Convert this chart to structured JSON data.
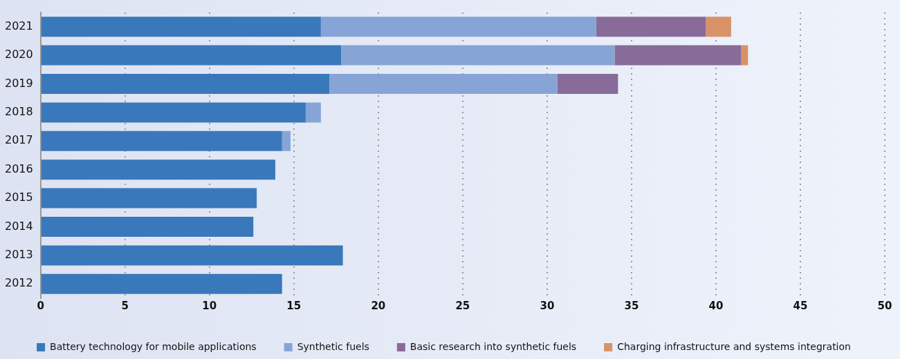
{
  "chart_data": {
    "type": "bar",
    "orientation": "horizontal",
    "stacked": true,
    "categories": [
      "2021",
      "2020",
      "2019",
      "2018",
      "2017",
      "2016",
      "2015",
      "2014",
      "2013",
      "2012"
    ],
    "series": [
      {
        "name": "Battery technology for mobile applications",
        "color": "#3a78bc",
        "values": [
          16.6,
          17.8,
          17.1,
          15.7,
          14.3,
          13.9,
          12.8,
          12.6,
          17.9,
          14.3
        ]
      },
      {
        "name": "Synthetic fuels",
        "color": "#86a5d6",
        "values": [
          16.3,
          16.2,
          13.5,
          0.9,
          0.5,
          null,
          null,
          null,
          null,
          null
        ]
      },
      {
        "name": "Basic research into synthetic fuels",
        "color": "#886b99",
        "values": [
          6.5,
          7.5,
          3.6,
          null,
          null,
          null,
          null,
          null,
          null,
          null
        ]
      },
      {
        "name": "Charging infrastructure and systems integration",
        "color": "#d89268",
        "values": [
          1.5,
          0.4,
          null,
          null,
          null,
          null,
          null,
          null,
          null,
          null
        ]
      }
    ],
    "xlim": [
      0,
      50
    ],
    "xticks": [
      0,
      5,
      10,
      15,
      20,
      25,
      30,
      35,
      40,
      45,
      50
    ],
    "grid": "x",
    "legend": "bottom"
  }
}
